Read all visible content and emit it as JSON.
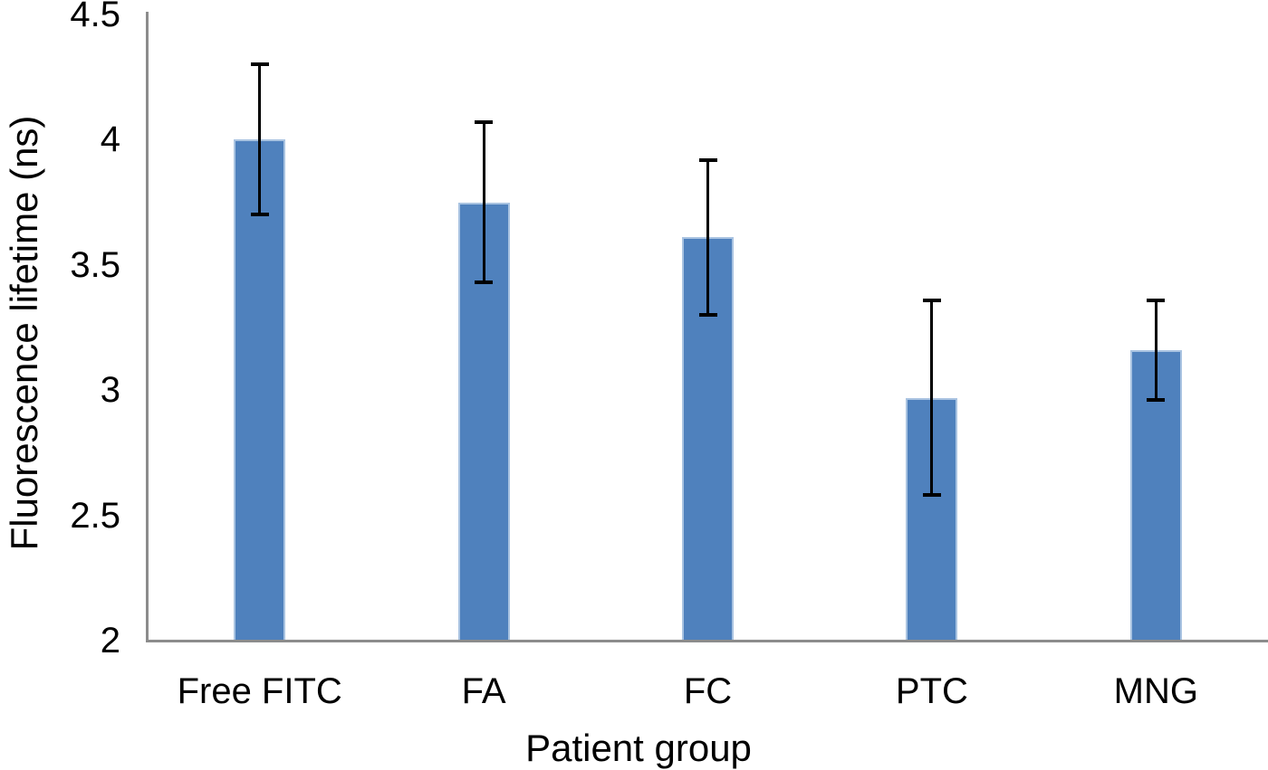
{
  "chart_data": {
    "type": "bar",
    "title": "",
    "xlabel": "Patient group",
    "ylabel": "Fluorescence lifetime (ns)",
    "categories": [
      "Free FITC",
      "FA",
      "FC",
      "PTC",
      "MNG"
    ],
    "values": [
      4.0,
      3.75,
      3.61,
      2.97,
      3.16
    ],
    "errors": [
      0.3,
      0.32,
      0.31,
      0.39,
      0.2
    ],
    "ylim": [
      2,
      4.5
    ],
    "ytick_labels": [
      "2",
      "2.5",
      "3",
      "3.5",
      "4",
      "4.5"
    ],
    "yticks": [
      2,
      2.5,
      3,
      3.5,
      4,
      4.5
    ],
    "grid": false,
    "legend": "none",
    "colors": {
      "bar_fill": "#4F81BD",
      "bar_border": "#A9C3E1",
      "axis_line": "#8C8C8C",
      "error_bar": "#000000",
      "text": "#000000",
      "background": "#FFFFFF"
    }
  }
}
